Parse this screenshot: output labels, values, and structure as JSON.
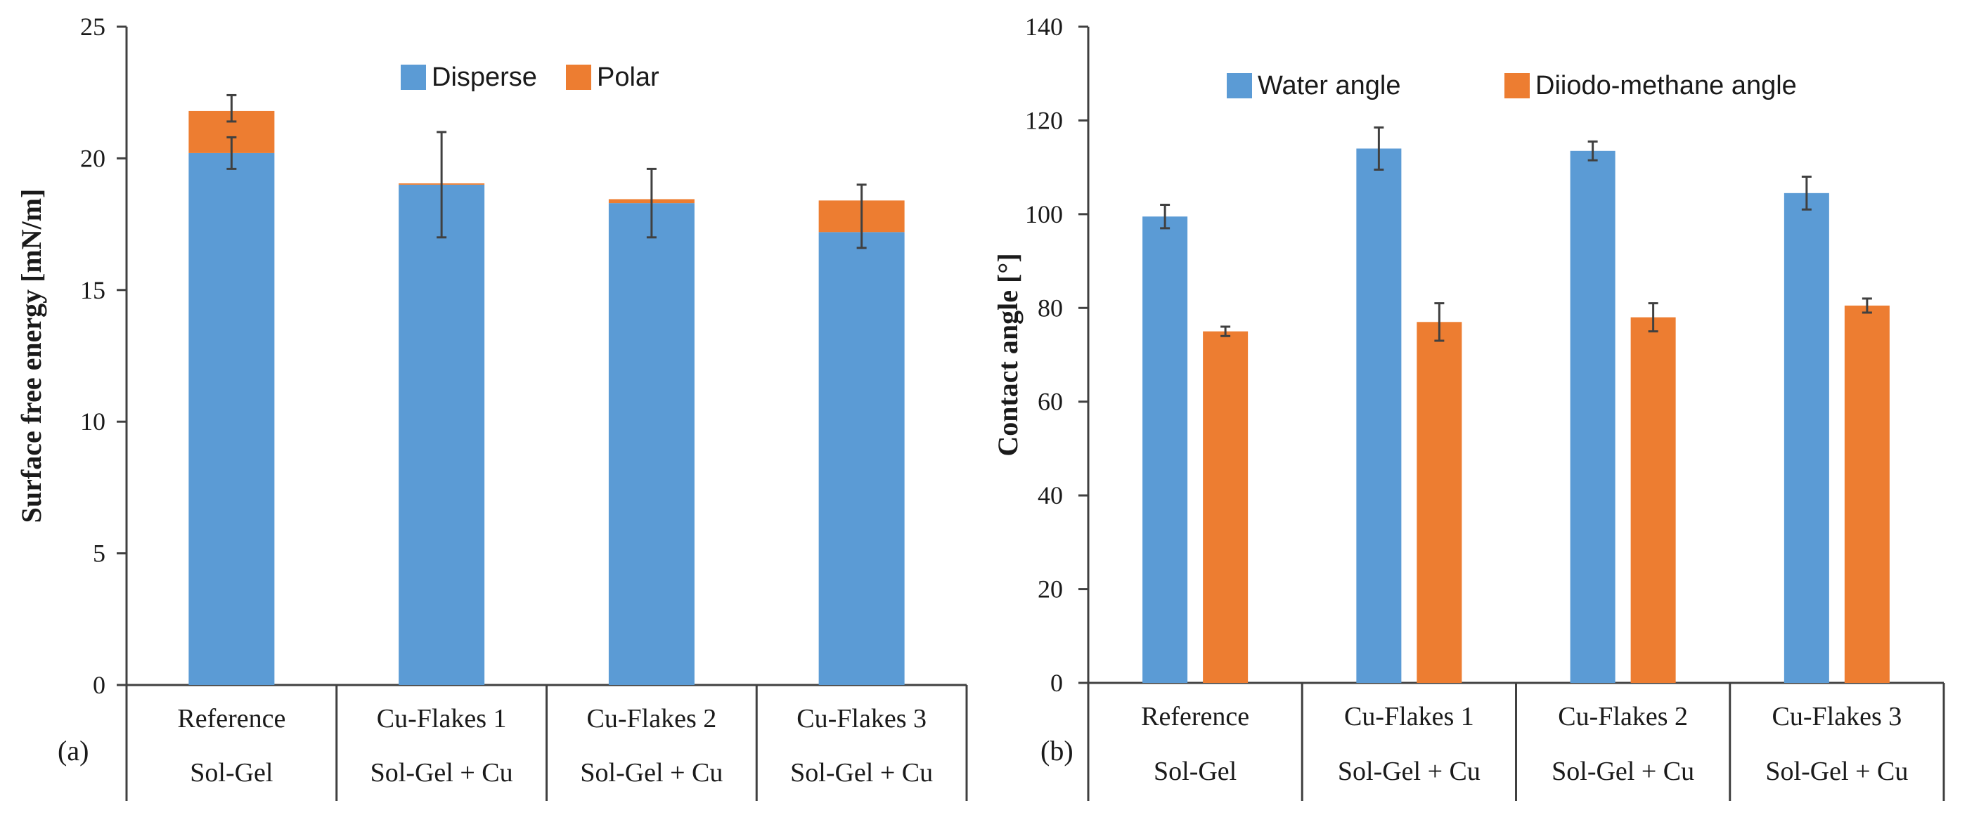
{
  "colors": {
    "disperse": "#5B9BD5",
    "polar": "#ED7D31",
    "water": "#5B9BD5",
    "diiodo": "#ED7D31"
  },
  "chart_data": [
    {
      "type": "bar",
      "stacked": true,
      "panel_label": "(a)",
      "ylabel": "Surface free energy [mN/m]",
      "ylim": [
        0,
        25
      ],
      "yticks": [
        "0",
        "5",
        "10",
        "15",
        "20",
        "25"
      ],
      "categories": [
        {
          "line1": "Reference",
          "line2": "Sol-Gel"
        },
        {
          "line1": "Cu-Flakes 1",
          "line2": "Sol-Gel + Cu"
        },
        {
          "line1": "Cu-Flakes 2",
          "line2": "Sol-Gel + Cu"
        },
        {
          "line1": "Cu-Flakes 3",
          "line2": "Sol-Gel + Cu"
        }
      ],
      "legend": [
        "Disperse",
        "Polar"
      ],
      "series": [
        {
          "name": "Disperse",
          "values": [
            20.2,
            19.0,
            18.3,
            17.2
          ],
          "err_center": [
            20.2,
            19.0,
            18.3,
            17.8
          ],
          "err": [
            0.6,
            2.0,
            1.3,
            1.2
          ]
        },
        {
          "name": "Polar",
          "values": [
            1.6,
            0.05,
            0.15,
            1.2
          ],
          "err_center": [
            21.9,
            19.05,
            18.45,
            18.4
          ],
          "err": [
            0.5,
            0.0,
            0.0,
            0.0
          ]
        }
      ]
    },
    {
      "type": "bar",
      "stacked": false,
      "panel_label": "(b)",
      "ylabel": "Contact angle [°]",
      "ylim": [
        0,
        140
      ],
      "yticks": [
        "0",
        "20",
        "40",
        "60",
        "80",
        "100",
        "120",
        "140"
      ],
      "categories": [
        {
          "line1": "Reference",
          "line2": "Sol-Gel"
        },
        {
          "line1": "Cu-Flakes 1",
          "line2": "Sol-Gel + Cu"
        },
        {
          "line1": "Cu-Flakes 2",
          "line2": "Sol-Gel + Cu"
        },
        {
          "line1": "Cu-Flakes 3",
          "line2": "Sol-Gel + Cu"
        }
      ],
      "legend": [
        "Water angle",
        "Diiodo-methane angle"
      ],
      "series": [
        {
          "name": "Water angle",
          "values": [
            99.5,
            114,
            113.5,
            104.5
          ],
          "err": [
            2.5,
            4.5,
            2.0,
            3.5
          ]
        },
        {
          "name": "Diiodo-methane angle",
          "values": [
            75,
            77,
            78,
            80.5
          ],
          "err": [
            1.0,
            4.0,
            3.0,
            1.5
          ]
        }
      ]
    }
  ]
}
